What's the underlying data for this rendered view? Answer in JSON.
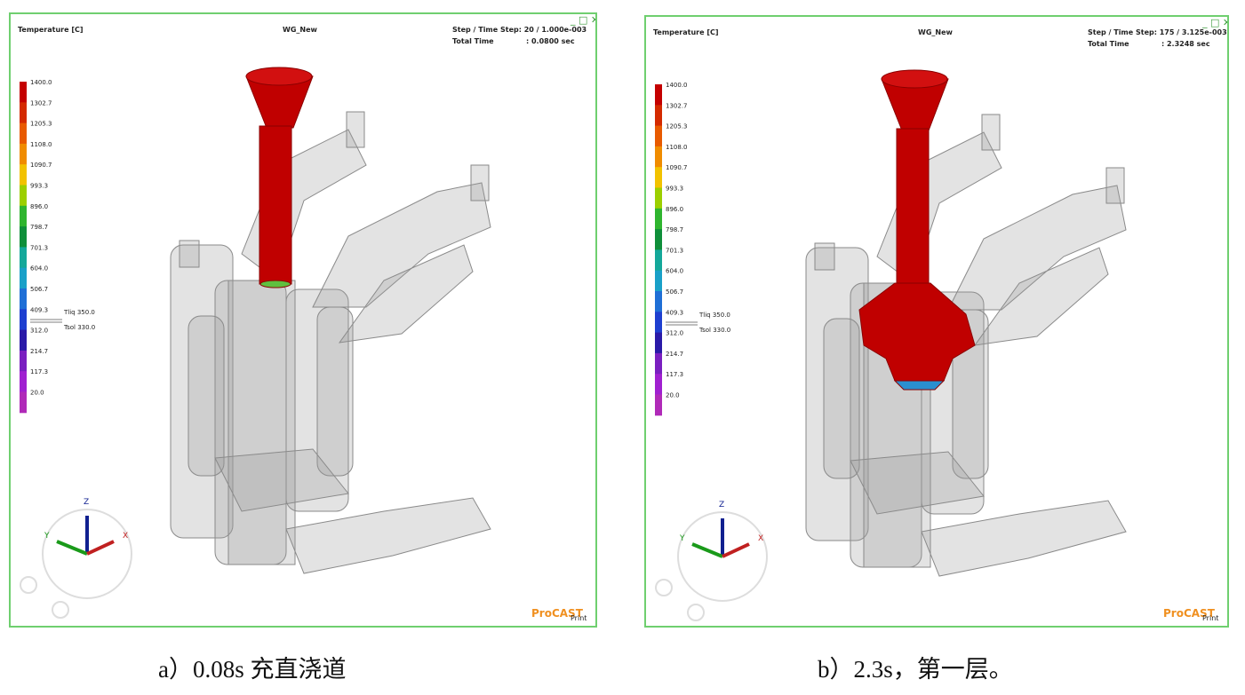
{
  "panels": [
    {
      "header": {
        "quantity": "Temperature [C]",
        "name": "WG_New",
        "step": "Step / Time Step: 20 / 1.000e-003",
        "time_label": "Total   Time",
        "time_value": ": 0.0800 sec"
      },
      "legend": [
        "1400.0",
        "1302.7",
        "1205.3",
        "1108.0",
        "1090.7",
        "993.3",
        "896.0",
        "798.7",
        "701.3",
        "604.0",
        "506.7",
        "409.3",
        "312.0",
        "214.7",
        "117.3",
        "20.0"
      ],
      "markers": [
        "Tliq  350.0",
        "Tsol  330.0"
      ],
      "axes": [
        "Z",
        "Y",
        "X"
      ],
      "logo": "ProCAST",
      "print": "Print",
      "caption": "a）0.08s 充直浇道"
    },
    {
      "header": {
        "quantity": "Temperature [C]",
        "name": "WG_New",
        "step": "Step / Time Step: 175 / 3.125e-003",
        "time_label": "Total   Time",
        "time_value": ": 2.3248 sec"
      },
      "legend": [
        "1400.0",
        "1302.7",
        "1205.3",
        "1108.0",
        "1090.7",
        "993.3",
        "896.0",
        "798.7",
        "701.3",
        "604.0",
        "506.7",
        "409.3",
        "312.0",
        "214.7",
        "117.3",
        "20.0"
      ],
      "markers": [
        "Tliq  350.0",
        "Tsol  330.0"
      ],
      "axes": [
        "Z",
        "Y",
        "X"
      ],
      "logo": "ProCAST",
      "print": "Print",
      "caption": "b）2.3s，第一层。"
    }
  ]
}
